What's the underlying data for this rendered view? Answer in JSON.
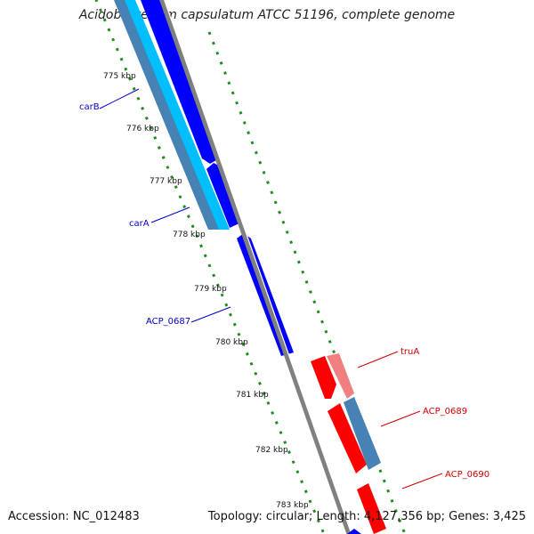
{
  "header": {
    "title": "Acidobacterium capsulatum ATCC 51196, complete genome"
  },
  "footer": {
    "accession": "Accession: NC_012483",
    "summary": "Topology: circular; Length: 4,127,356 bp; Genes: 3,425"
  },
  "ticks": [
    "775 kbp",
    "776 kbp",
    "777 kbp",
    "778 kbp",
    "779 kbp",
    "780 kbp",
    "781 kbp",
    "782 kbp",
    "783 kbp"
  ],
  "gene_labels": {
    "carB": "carB",
    "carA": "carA",
    "acp0687": "ACP_0687",
    "truA": "truA",
    "acp0689": "ACP_0689",
    "acp0690": "ACP_0690"
  },
  "colors": {
    "forward_gene": "#0000ff",
    "reverse_gene": "#ff0000",
    "forward_cds_light": "#00bfff",
    "steel": "#4682b4",
    "reverse_light": "#f08080",
    "backbone": "#808080",
    "gc_marks": "#228b22"
  }
}
